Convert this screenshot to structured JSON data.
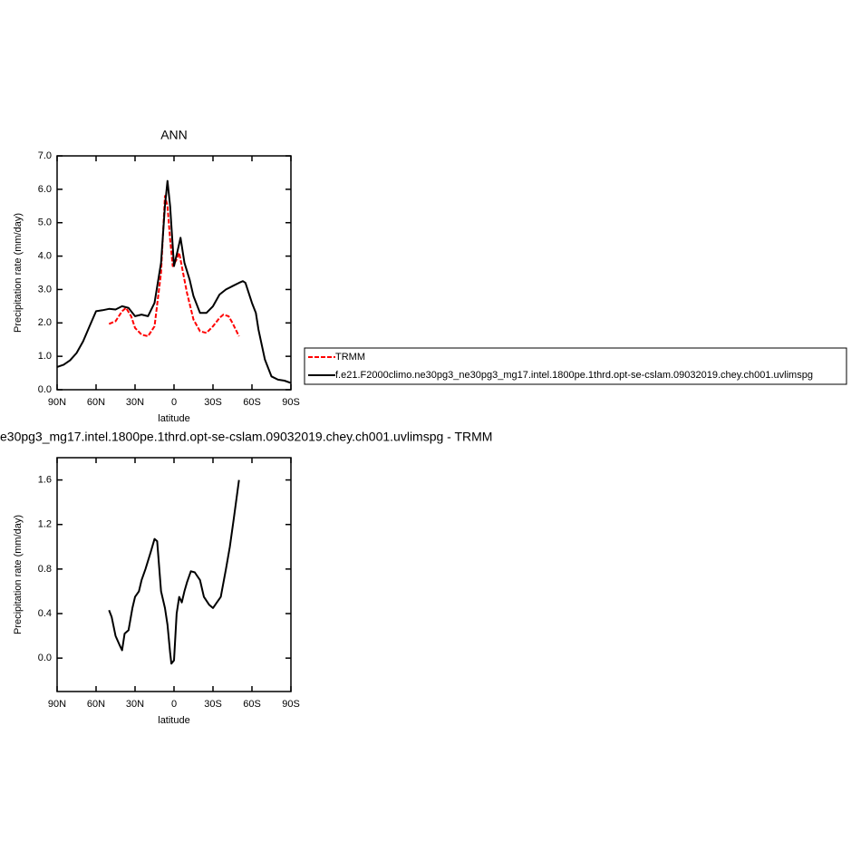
{
  "chart_data": [
    {
      "type": "line",
      "title": "ANN",
      "x_label": "latitude",
      "y_label": "Precipitation rate (mm/day)",
      "xlim": [
        90,
        -90
      ],
      "xticks": [
        {
          "value": 90,
          "label": "90N"
        },
        {
          "value": 60,
          "label": "60N"
        },
        {
          "value": 30,
          "label": "30N"
        },
        0,
        {
          "value": -30,
          "label": "30S"
        },
        {
          "value": -60,
          "label": "60S"
        },
        {
          "value": -90,
          "label": "90S"
        }
      ],
      "ylim": [
        0,
        7
      ],
      "yticks": [
        {
          "value": 0,
          "label": "0.0"
        },
        {
          "value": 1,
          "label": "1.0"
        },
        {
          "value": 2,
          "label": "2.0"
        },
        {
          "value": 3,
          "label": "3.0"
        },
        {
          "value": 4,
          "label": "4.0"
        },
        {
          "value": 5,
          "label": "5.0"
        },
        {
          "value": 6,
          "label": "6.0"
        },
        {
          "value": 7,
          "label": "7.0"
        }
      ],
      "legend": "right",
      "series": [
        {
          "name": "TRMM",
          "color": "#ff0000",
          "line_style": "dashed",
          "x": [
            50,
            45,
            40,
            37,
            33,
            30,
            25,
            20,
            15,
            10,
            7,
            5,
            3,
            1,
            -2,
            -4,
            -7,
            -10,
            -15,
            -20,
            -25,
            -30,
            -35,
            -38,
            -42,
            -45,
            -50
          ],
          "values": [
            1.97,
            2.05,
            2.35,
            2.45,
            2.2,
            1.85,
            1.65,
            1.6,
            1.9,
            3.5,
            5.8,
            5.5,
            4.5,
            3.7,
            3.9,
            4.1,
            3.5,
            2.9,
            2.1,
            1.75,
            1.7,
            1.9,
            2.15,
            2.25,
            2.2,
            2.0,
            1.6
          ]
        },
        {
          "name": "f.e21.F2000climo.ne30pg3_ne30pg3_mg17.intel.1800pe.1thrd.opt-se-cslam.09032019.chey.ch001.uvlimspg",
          "color": "#000000",
          "line_style": "solid",
          "x": [
            90,
            85,
            80,
            75,
            70,
            65,
            60,
            55,
            50,
            45,
            40,
            35,
            30,
            25,
            20,
            15,
            10,
            7,
            5,
            3,
            0,
            -3,
            -5,
            -8,
            -12,
            -15,
            -20,
            -25,
            -30,
            -35,
            -40,
            -45,
            -50,
            -53,
            -55,
            -60,
            -63,
            -65,
            -70,
            -75,
            -80,
            -85,
            -90
          ],
          "values": [
            0.68,
            0.75,
            0.88,
            1.1,
            1.45,
            1.9,
            2.35,
            2.38,
            2.42,
            2.4,
            2.5,
            2.45,
            2.2,
            2.25,
            2.2,
            2.6,
            3.8,
            5.5,
            6.25,
            5.5,
            3.7,
            4.2,
            4.55,
            3.8,
            3.3,
            2.8,
            2.3,
            2.3,
            2.5,
            2.85,
            3.0,
            3.1,
            3.2,
            3.25,
            3.2,
            2.6,
            2.3,
            1.8,
            0.9,
            0.4,
            0.3,
            0.27,
            0.2
          ]
        }
      ]
    },
    {
      "type": "line",
      "title": "e30pg3_mg17.intel.1800pe.1thrd.opt-se-cslam.09032019.chey.ch001.uvlimspg - TRMM",
      "x_label": "latitude",
      "y_label": "Precipitation rate (mm/day)",
      "xlim": [
        90,
        -90
      ],
      "xticks": [
        {
          "value": 90,
          "label": "90N"
        },
        {
          "value": 60,
          "label": "60N"
        },
        {
          "value": 30,
          "label": "30N"
        },
        0,
        {
          "value": -30,
          "label": "30S"
        },
        {
          "value": -60,
          "label": "60S"
        },
        {
          "value": -90,
          "label": "90S"
        }
      ],
      "ylim": [
        -0.3,
        1.8
      ],
      "yticks": [
        {
          "value": 0,
          "label": "0.0"
        },
        0.4,
        0.8,
        1.2,
        1.6
      ],
      "series": [
        {
          "color": "#000000",
          "line_style": "solid",
          "x": [
            50,
            48,
            45,
            42,
            40,
            38,
            35,
            32,
            30,
            27,
            25,
            22,
            18,
            15,
            13,
            10,
            7,
            5,
            3,
            2,
            0,
            -2,
            -4,
            -6,
            -8,
            -10,
            -13,
            -16,
            -20,
            -23,
            -27,
            -30,
            -33,
            -36,
            -40,
            -43,
            -46,
            -50
          ],
          "values": [
            0.43,
            0.37,
            0.2,
            0.12,
            0.07,
            0.22,
            0.25,
            0.45,
            0.55,
            0.6,
            0.7,
            0.8,
            0.95,
            1.07,
            1.05,
            0.6,
            0.45,
            0.3,
            0.05,
            -0.05,
            -0.02,
            0.4,
            0.55,
            0.5,
            0.6,
            0.68,
            0.78,
            0.77,
            0.7,
            0.55,
            0.48,
            0.45,
            0.5,
            0.55,
            0.8,
            1.0,
            1.25,
            1.6
          ]
        }
      ]
    }
  ]
}
